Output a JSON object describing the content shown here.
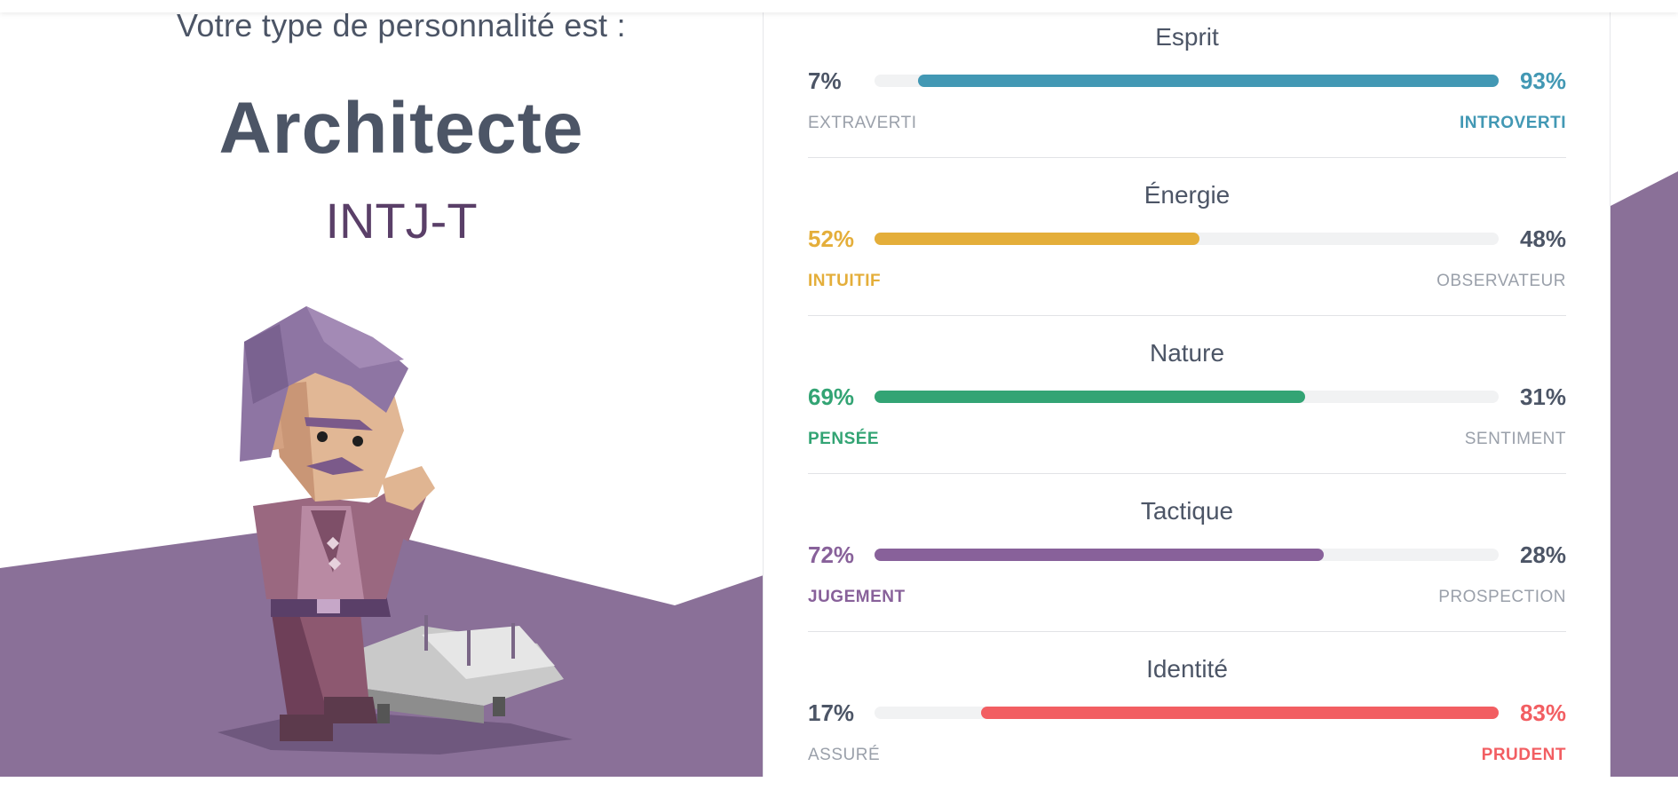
{
  "result": {
    "intro": "Votre type de personnalité est :",
    "type_name": "Architecte",
    "type_code": "INTJ-T"
  },
  "colors": {
    "purple_bg": "#8a7098",
    "esprit": "#4298b4",
    "energie": "#e4ae3a",
    "nature": "#33a474",
    "tactique": "#88619a",
    "identite": "#f25e62",
    "neutral_text": "#4c5566",
    "muted_text": "#9aa0aa"
  },
  "traits": [
    {
      "title": "Esprit",
      "left_pct": "7%",
      "right_pct": "93%",
      "left_label": "Extraverti",
      "right_label": "Introverti",
      "dominant": "right",
      "value": 93,
      "color": "#4298b4"
    },
    {
      "title": "Énergie",
      "left_pct": "52%",
      "right_pct": "48%",
      "left_label": "Intuitif",
      "right_label": "Observateur",
      "dominant": "left",
      "value": 52,
      "color": "#e4ae3a"
    },
    {
      "title": "Nature",
      "left_pct": "69%",
      "right_pct": "31%",
      "left_label": "Pensée",
      "right_label": "Sentiment",
      "dominant": "left",
      "value": 69,
      "color": "#33a474"
    },
    {
      "title": "Tactique",
      "left_pct": "72%",
      "right_pct": "28%",
      "left_label": "Jugement",
      "right_label": "Prospection",
      "dominant": "left",
      "value": 72,
      "color": "#88619a"
    },
    {
      "title": "Identité",
      "left_pct": "17%",
      "right_pct": "83%",
      "left_label": "Assuré",
      "right_label": "Prudent",
      "dominant": "right",
      "value": 83,
      "color": "#f25e62"
    }
  ]
}
